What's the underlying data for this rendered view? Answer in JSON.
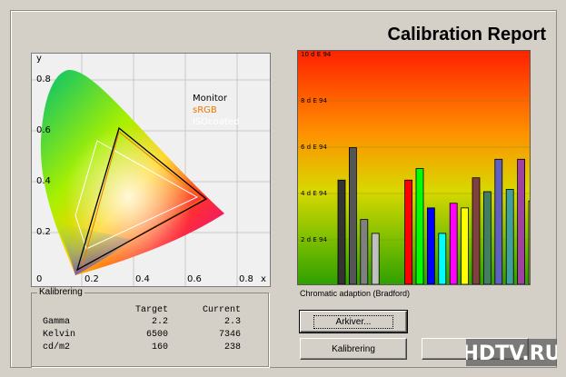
{
  "title": "Calibration Report",
  "cie": {
    "y_axis_label": "y",
    "x_axis_label": "x",
    "y_ticks": [
      "0.8",
      "0.6",
      "0.4",
      "0.2"
    ],
    "x_ticks": [
      "0",
      "0.2",
      "0.4",
      "0.6",
      "0.8"
    ],
    "legend": {
      "monitor": "Monitor",
      "srgb": "sRGB",
      "iso": "ISOcoated"
    },
    "colors": {
      "monitor": "#000000",
      "srgb": "#f07800",
      "iso": "#ffffff"
    }
  },
  "kalibrering": {
    "group_title": "Kalibrering",
    "col_target": "Target",
    "col_current": "Current",
    "rows": [
      {
        "label": "Gamma",
        "target": "2.2",
        "current": "2.3"
      },
      {
        "label": "Kelvin",
        "target": "6500",
        "current": "7346"
      },
      {
        "label": "cd/m2",
        "target": "160",
        "current": "238"
      }
    ]
  },
  "chart_data": {
    "type": "bar",
    "ylabel": "",
    "y_tick_labels": [
      "10 d E 94",
      "8 d E 94",
      "6 d E 94",
      "4 d E 94",
      "2 d E 94"
    ],
    "y_ticks": [
      10,
      8,
      6,
      4,
      2
    ],
    "ylim": [
      0,
      10
    ],
    "grid": true,
    "values": [
      4.5,
      5.9,
      2.8,
      2.2,
      4.5,
      5.0,
      3.3,
      2.2,
      3.5,
      3.3,
      4.6,
      4.0,
      5.4,
      4.1,
      5.4,
      3.6
    ],
    "colors": [
      "#333333",
      "#555555",
      "#808080",
      "#c0c0c0",
      "#ff0000",
      "#00ff00",
      "#0000ff",
      "#00ffff",
      "#ff00ff",
      "#ffff00",
      "#804040",
      "#408060",
      "#6060c0",
      "#40a0a0",
      "#a040a0",
      "#c0c060"
    ]
  },
  "caption": "Chromatic adaption (Bradford)",
  "buttons": {
    "archive": "Arkiver...",
    "kalibrering": "Kalibrering"
  }
}
